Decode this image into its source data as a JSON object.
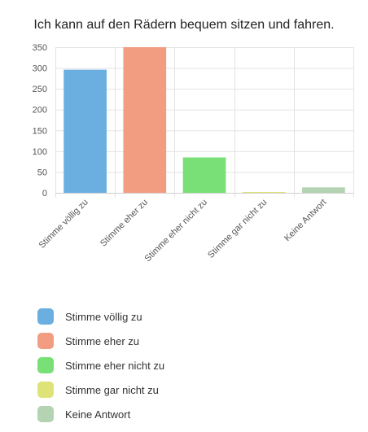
{
  "chart_data": {
    "type": "bar",
    "title": "Ich kann auf den Rädern bequem sitzen und fahren.",
    "categories": [
      "Stimme völlig zu",
      "Stimme eher zu",
      "Stimme eher nicht zu",
      "Stimme gar nicht zu",
      "Keine Antwort"
    ],
    "values": [
      296,
      350,
      85,
      2,
      13
    ],
    "colors": [
      "#6aafe0",
      "#f29d81",
      "#78e077",
      "#dde377",
      "#b4d3b2"
    ],
    "yticks": [
      0,
      50,
      100,
      150,
      200,
      250,
      300,
      350
    ],
    "ylim": [
      0,
      350
    ],
    "grid": true,
    "legend_position": "bottom"
  }
}
